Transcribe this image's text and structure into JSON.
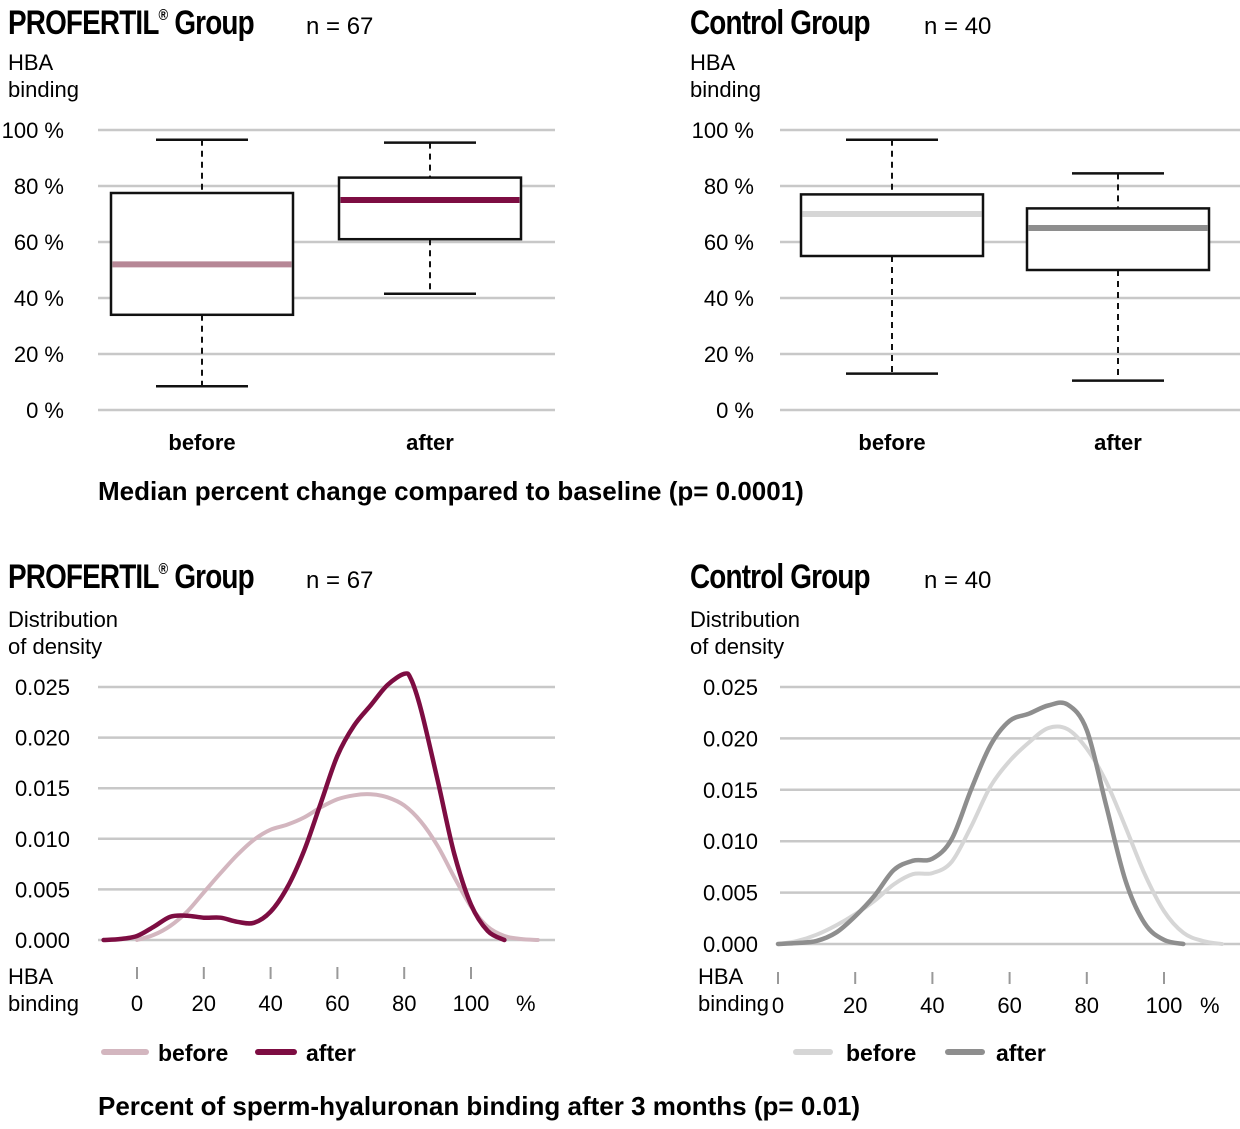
{
  "colors": {
    "grid": "#c8c8c8",
    "profertil_before": "#d3b6bf",
    "profertil_after": "#7d0d42",
    "profertil_median_before": "#b68796",
    "control_before": "#d6d6d6",
    "control_after": "#8e8e8e"
  },
  "box_section": {
    "caption": "Median percent change compared to baseline (p= 0.0001)",
    "panels": [
      {
        "title": "PROFERTIL",
        "title_mark": "®",
        "title_suffix": " Group",
        "n_label": "n = 67",
        "ylabel_line1": "HBA",
        "ylabel_line2": "binding"
      },
      {
        "title": "Control Group",
        "title_mark": "",
        "title_suffix": "",
        "n_label": "n = 40",
        "ylabel_line1": "HBA",
        "ylabel_line2": "binding"
      }
    ]
  },
  "density_section": {
    "caption": "Percent of sperm-hyaluronan binding after 3 months (p= 0.01)",
    "panels": [
      {
        "title": "PROFERTIL",
        "title_mark": "®",
        "title_suffix": " Group",
        "n_label": "n = 67",
        "ylabel_line1": "Distribution",
        "ylabel_line2": "of density",
        "xlabel_line1": "HBA",
        "xlabel_line2": "binding",
        "x_unit": "%",
        "legend": [
          "before",
          "after"
        ]
      },
      {
        "title": "Control Group",
        "title_mark": "",
        "title_suffix": "",
        "n_label": "n = 40",
        "ylabel_line1": "Distribution",
        "ylabel_line2": "of density",
        "xlabel_line1": "HBA",
        "xlabel_line2": "binding",
        "x_unit": "%",
        "legend": [
          "before",
          "after"
        ]
      }
    ]
  },
  "chart_data": [
    {
      "type": "box",
      "title": "PROFERTIL® Group",
      "categories": [
        "before",
        "after"
      ],
      "ylabel": "HBA binding",
      "ylim": [
        0,
        100
      ],
      "yticks": [
        "0 %",
        "20 %",
        "40 %",
        "60 %",
        "80 %",
        "100 %"
      ],
      "ytick_values": [
        0,
        20,
        40,
        60,
        80,
        100
      ],
      "grid": true,
      "boxes": [
        {
          "name": "before",
          "min": 8.5,
          "q1": 34,
          "median": 52,
          "q3": 77.5,
          "max": 96.5,
          "median_color": "#b68796"
        },
        {
          "name": "after",
          "min": 41.5,
          "q1": 61,
          "median": 75,
          "q3": 83,
          "max": 95.5,
          "median_color": "#7d0d42"
        }
      ]
    },
    {
      "type": "box",
      "title": "Control Group",
      "categories": [
        "before",
        "after"
      ],
      "ylabel": "HBA binding",
      "ylim": [
        0,
        100
      ],
      "yticks": [
        "0 %",
        "20 %",
        "40 %",
        "60 %",
        "80 %",
        "100 %"
      ],
      "ytick_values": [
        0,
        20,
        40,
        60,
        80,
        100
      ],
      "grid": true,
      "boxes": [
        {
          "name": "before",
          "min": 13,
          "q1": 55,
          "median": 70,
          "q3": 77,
          "max": 96.5,
          "median_color": "#d6d6d6"
        },
        {
          "name": "after",
          "min": 10.5,
          "q1": 50,
          "median": 65,
          "q3": 72,
          "max": 84.5,
          "median_color": "#8e8e8e"
        }
      ]
    },
    {
      "type": "line",
      "title": "PROFERTIL® Group",
      "xlabel": "HBA binding",
      "ylabel": "Distribution of density",
      "xlim": [
        -10,
        120
      ],
      "ylim": [
        0,
        0.025
      ],
      "xticks": [
        "0",
        "20",
        "40",
        "60",
        "80",
        "100"
      ],
      "xtick_values": [
        0,
        20,
        40,
        60,
        80,
        100
      ],
      "yticks": [
        "0.000",
        "0.005",
        "0.010",
        "0.015",
        "0.020",
        "0.025"
      ],
      "ytick_values": [
        0,
        0.005,
        0.01,
        0.015,
        0.02,
        0.025
      ],
      "grid": true,
      "legend_position": "bottom",
      "series": [
        {
          "name": "before",
          "color": "#d3b6bf",
          "x": [
            0,
            5,
            10,
            15,
            20,
            25,
            30,
            35,
            40,
            45,
            50,
            55,
            60,
            65,
            70,
            75,
            80,
            85,
            90,
            95,
            100,
            105,
            110,
            115,
            120
          ],
          "y": [
            0.0,
            0.0005,
            0.0014,
            0.0028,
            0.0047,
            0.0066,
            0.0084,
            0.0099,
            0.0109,
            0.0114,
            0.0121,
            0.0131,
            0.0139,
            0.0143,
            0.0144,
            0.0141,
            0.0133,
            0.0117,
            0.0093,
            0.0062,
            0.0033,
            0.0013,
            0.0004,
            0.0001,
            0.0
          ]
        },
        {
          "name": "after",
          "color": "#7d0d42",
          "x": [
            -10,
            -5,
            0,
            5,
            10,
            15,
            20,
            25,
            30,
            35,
            40,
            45,
            50,
            55,
            60,
            65,
            70,
            75,
            80,
            82,
            85,
            90,
            95,
            100,
            105,
            110
          ],
          "y": [
            0.0,
            0.0001,
            0.0004,
            0.0013,
            0.0023,
            0.0024,
            0.0022,
            0.0022,
            0.0018,
            0.0017,
            0.0028,
            0.0052,
            0.0088,
            0.0135,
            0.0182,
            0.0212,
            0.0232,
            0.0252,
            0.0263,
            0.0258,
            0.0228,
            0.0158,
            0.0085,
            0.0035,
            0.0009,
            0.0
          ]
        }
      ]
    },
    {
      "type": "line",
      "title": "Control Group",
      "xlabel": "HBA binding",
      "ylabel": "Distribution of density",
      "xlim": [
        0,
        115
      ],
      "ylim": [
        0,
        0.025
      ],
      "xticks": [
        "0",
        "20",
        "40",
        "60",
        "80",
        "100"
      ],
      "xtick_values": [
        0,
        20,
        40,
        60,
        80,
        100
      ],
      "yticks": [
        "0.000",
        "0.005",
        "0.010",
        "0.015",
        "0.020",
        "0.025"
      ],
      "ytick_values": [
        0,
        0.005,
        0.01,
        0.015,
        0.02,
        0.025
      ],
      "grid": true,
      "legend_position": "bottom",
      "series": [
        {
          "name": "before",
          "color": "#d6d6d6",
          "x": [
            0,
            5,
            10,
            15,
            20,
            25,
            30,
            35,
            40,
            45,
            50,
            55,
            60,
            65,
            70,
            75,
            80,
            85,
            90,
            95,
            100,
            105,
            110,
            115
          ],
          "y": [
            0.0,
            0.0003,
            0.0009,
            0.0018,
            0.0029,
            0.0042,
            0.0058,
            0.0068,
            0.0069,
            0.008,
            0.0114,
            0.0153,
            0.0178,
            0.0196,
            0.021,
            0.0209,
            0.019,
            0.0158,
            0.0114,
            0.0068,
            0.0032,
            0.0011,
            0.0003,
            0.0
          ]
        },
        {
          "name": "after",
          "color": "#8e8e8e",
          "x": [
            0,
            5,
            10,
            15,
            20,
            25,
            30,
            35,
            40,
            45,
            50,
            55,
            60,
            65,
            70,
            75,
            80,
            85,
            90,
            95,
            100,
            105
          ],
          "y": [
            0.0,
            0.0001,
            0.0003,
            0.0011,
            0.0027,
            0.0047,
            0.0072,
            0.0081,
            0.0083,
            0.0102,
            0.015,
            0.0193,
            0.0217,
            0.0224,
            0.0232,
            0.0233,
            0.0208,
            0.0135,
            0.0062,
            0.002,
            0.0004,
            0.0
          ]
        }
      ]
    }
  ]
}
